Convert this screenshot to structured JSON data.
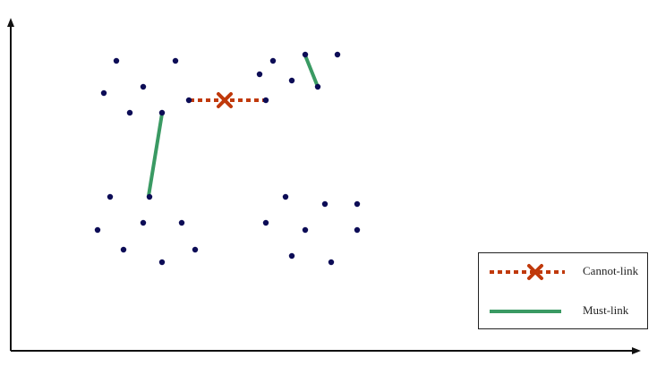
{
  "diagram": {
    "legend": {
      "items": [
        {
          "label": "Cannot-link",
          "style": "dotted-with-cross",
          "color": "#c0390b"
        },
        {
          "label": "Must-link",
          "style": "solid",
          "color": "#3a9a63"
        }
      ]
    },
    "colors": {
      "point": "#0c0c56",
      "axis": "#111111",
      "cannot_link": "#c0390b",
      "must_link": "#3a9a63"
    },
    "constraints": [
      {
        "type": "cannot-link",
        "from_point": "p-top-left-cluster-right",
        "to_point": "p-top-right-cluster-left"
      },
      {
        "type": "must-link",
        "from_point": "p-top-left-cluster-low",
        "to_point": "p-bottom-left-cluster-top"
      },
      {
        "type": "must-link",
        "from_point": "p-top-right-cluster-a",
        "to_point": "p-top-right-cluster-b"
      }
    ]
  }
}
